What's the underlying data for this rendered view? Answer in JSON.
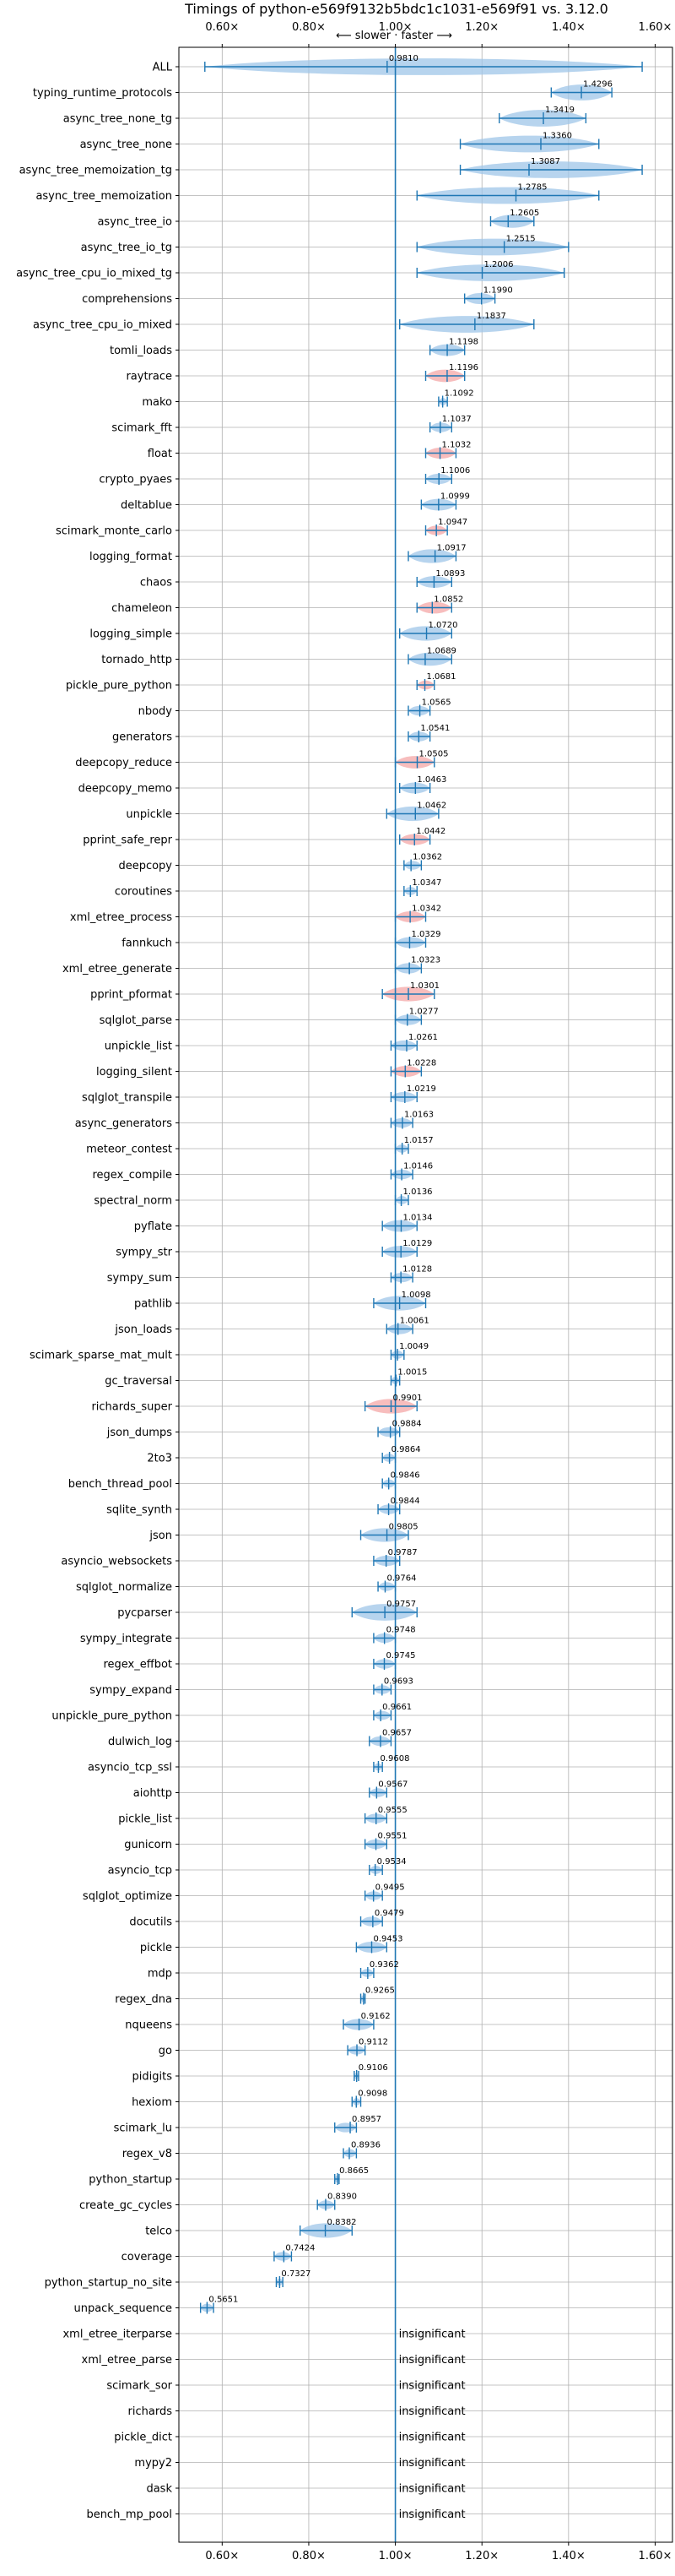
{
  "chart_data": {
    "type": "violin",
    "title": "Timings of python-e569f9132b5bdc1c1031-e569f91 vs. 3.12.0",
    "subtitle": "⟵ slower · faster ⟶",
    "xticks": [
      "0.60×",
      "0.80×",
      "1.00×",
      "1.20×",
      "1.40×",
      "1.60×"
    ],
    "xtick_values": [
      0.6,
      0.8,
      1.0,
      1.2,
      1.4,
      1.6
    ],
    "xlim": [
      0.5,
      1.64
    ],
    "grid": true,
    "reference_line": 1.0,
    "colors": {
      "violin": "#9fc5e8",
      "violin_highlight": "#f4a7a7",
      "line": "#1f77b4",
      "grid": "#b0b0b0"
    },
    "benchmarks": [
      {
        "name": "ALL",
        "value": 0.981,
        "label": "0.9810",
        "min": 0.56,
        "max": 1.57
      },
      {
        "name": "typing_runtime_protocols",
        "value": 1.4296,
        "label": "1.4296",
        "min": 1.36,
        "max": 1.5
      },
      {
        "name": "async_tree_none_tg",
        "value": 1.3419,
        "label": "1.3419",
        "min": 1.24,
        "max": 1.44
      },
      {
        "name": "async_tree_none",
        "value": 1.336,
        "label": "1.3360",
        "min": 1.15,
        "max": 1.47
      },
      {
        "name": "async_tree_memoization_tg",
        "value": 1.3087,
        "label": "1.3087",
        "min": 1.15,
        "max": 1.57
      },
      {
        "name": "async_tree_memoization",
        "value": 1.2785,
        "label": "1.2785",
        "min": 1.05,
        "max": 1.47
      },
      {
        "name": "async_tree_io",
        "value": 1.2605,
        "label": "1.2605",
        "min": 1.22,
        "max": 1.32
      },
      {
        "name": "async_tree_io_tg",
        "value": 1.2515,
        "label": "1.2515",
        "min": 1.05,
        "max": 1.4
      },
      {
        "name": "async_tree_cpu_io_mixed_tg",
        "value": 1.2006,
        "label": "1.2006",
        "min": 1.05,
        "max": 1.39
      },
      {
        "name": "comprehensions",
        "value": 1.199,
        "label": "1.1990",
        "min": 1.16,
        "max": 1.23
      },
      {
        "name": "async_tree_cpu_io_mixed",
        "value": 1.1837,
        "label": "1.1837",
        "min": 1.01,
        "max": 1.32
      },
      {
        "name": "tomli_loads",
        "value": 1.1198,
        "label": "1.1198",
        "min": 1.08,
        "max": 1.16
      },
      {
        "name": "raytrace",
        "value": 1.1196,
        "label": "1.1196",
        "min": 1.07,
        "max": 1.16
      },
      {
        "name": "mako",
        "value": 1.1092,
        "label": "1.1092",
        "min": 1.1,
        "max": 1.12
      },
      {
        "name": "scimark_fft",
        "value": 1.1037,
        "label": "1.1037",
        "min": 1.08,
        "max": 1.13
      },
      {
        "name": "float",
        "value": 1.1032,
        "label": "1.1032",
        "min": 1.07,
        "max": 1.14
      },
      {
        "name": "crypto_pyaes",
        "value": 1.1006,
        "label": "1.1006",
        "min": 1.07,
        "max": 1.13
      },
      {
        "name": "deltablue",
        "value": 1.0999,
        "label": "1.0999",
        "min": 1.06,
        "max": 1.14
      },
      {
        "name": "scimark_monte_carlo",
        "value": 1.0947,
        "label": "1.0947",
        "min": 1.07,
        "max": 1.12
      },
      {
        "name": "logging_format",
        "value": 1.0917,
        "label": "1.0917",
        "min": 1.03,
        "max": 1.14
      },
      {
        "name": "chaos",
        "value": 1.0893,
        "label": "1.0893",
        "min": 1.05,
        "max": 1.13
      },
      {
        "name": "chameleon",
        "value": 1.0852,
        "label": "1.0852",
        "min": 1.05,
        "max": 1.13
      },
      {
        "name": "logging_simple",
        "value": 1.072,
        "label": "1.0720",
        "min": 1.01,
        "max": 1.13
      },
      {
        "name": "tornado_http",
        "value": 1.0689,
        "label": "1.0689",
        "min": 1.03,
        "max": 1.13
      },
      {
        "name": "pickle_pure_python",
        "value": 1.0681,
        "label": "1.0681",
        "min": 1.05,
        "max": 1.09
      },
      {
        "name": "nbody",
        "value": 1.0565,
        "label": "1.0565",
        "min": 1.03,
        "max": 1.08
      },
      {
        "name": "generators",
        "value": 1.0541,
        "label": "1.0541",
        "min": 1.03,
        "max": 1.08
      },
      {
        "name": "deepcopy_reduce",
        "value": 1.0505,
        "label": "1.0505",
        "min": 1.0,
        "max": 1.09
      },
      {
        "name": "deepcopy_memo",
        "value": 1.0463,
        "label": "1.0463",
        "min": 1.01,
        "max": 1.08
      },
      {
        "name": "unpickle",
        "value": 1.0462,
        "label": "1.0462",
        "min": 0.98,
        "max": 1.1
      },
      {
        "name": "pprint_safe_repr",
        "value": 1.0442,
        "label": "1.0442",
        "min": 1.01,
        "max": 1.08
      },
      {
        "name": "deepcopy",
        "value": 1.0362,
        "label": "1.0362",
        "min": 1.02,
        "max": 1.06
      },
      {
        "name": "coroutines",
        "value": 1.0347,
        "label": "1.0347",
        "min": 1.02,
        "max": 1.05
      },
      {
        "name": "xml_etree_process",
        "value": 1.0342,
        "label": "1.0342",
        "min": 1.0,
        "max": 1.07
      },
      {
        "name": "fannkuch",
        "value": 1.0329,
        "label": "1.0329",
        "min": 1.0,
        "max": 1.07
      },
      {
        "name": "xml_etree_generate",
        "value": 1.0323,
        "label": "1.0323",
        "min": 1.0,
        "max": 1.06
      },
      {
        "name": "pprint_pformat",
        "value": 1.0301,
        "label": "1.0301",
        "min": 0.97,
        "max": 1.09
      },
      {
        "name": "sqlglot_parse",
        "value": 1.0277,
        "label": "1.0277",
        "min": 1.0,
        "max": 1.06
      },
      {
        "name": "unpickle_list",
        "value": 1.0261,
        "label": "1.0261",
        "min": 0.99,
        "max": 1.05
      },
      {
        "name": "logging_silent",
        "value": 1.0228,
        "label": "1.0228",
        "min": 0.99,
        "max": 1.06
      },
      {
        "name": "sqlglot_transpile",
        "value": 1.0219,
        "label": "1.0219",
        "min": 0.99,
        "max": 1.05
      },
      {
        "name": "async_generators",
        "value": 1.0163,
        "label": "1.0163",
        "min": 0.99,
        "max": 1.04
      },
      {
        "name": "meteor_contest",
        "value": 1.0157,
        "label": "1.0157",
        "min": 1.0,
        "max": 1.03
      },
      {
        "name": "regex_compile",
        "value": 1.0146,
        "label": "1.0146",
        "min": 0.99,
        "max": 1.04
      },
      {
        "name": "spectral_norm",
        "value": 1.0136,
        "label": "1.0136",
        "min": 1.0,
        "max": 1.03
      },
      {
        "name": "pyflate",
        "value": 1.0134,
        "label": "1.0134",
        "min": 0.97,
        "max": 1.05
      },
      {
        "name": "sympy_str",
        "value": 1.0129,
        "label": "1.0129",
        "min": 0.97,
        "max": 1.05
      },
      {
        "name": "sympy_sum",
        "value": 1.0128,
        "label": "1.0128",
        "min": 0.99,
        "max": 1.04
      },
      {
        "name": "pathlib",
        "value": 1.0098,
        "label": "1.0098",
        "min": 0.95,
        "max": 1.07
      },
      {
        "name": "json_loads",
        "value": 1.0061,
        "label": "1.0061",
        "min": 0.98,
        "max": 1.04
      },
      {
        "name": "scimark_sparse_mat_mult",
        "value": 1.0049,
        "label": "1.0049",
        "min": 0.99,
        "max": 1.02
      },
      {
        "name": "gc_traversal",
        "value": 1.0015,
        "label": "1.0015",
        "min": 0.99,
        "max": 1.01
      },
      {
        "name": "richards_super",
        "value": 0.9901,
        "label": "0.9901",
        "min": 0.93,
        "max": 1.05
      },
      {
        "name": "json_dumps",
        "value": 0.9884,
        "label": "0.9884",
        "min": 0.96,
        "max": 1.01
      },
      {
        "name": "2to3",
        "value": 0.9864,
        "label": "0.9864",
        "min": 0.97,
        "max": 1.0
      },
      {
        "name": "bench_thread_pool",
        "value": 0.9846,
        "label": "0.9846",
        "min": 0.97,
        "max": 1.0
      },
      {
        "name": "sqlite_synth",
        "value": 0.9844,
        "label": "0.9844",
        "min": 0.96,
        "max": 1.01
      },
      {
        "name": "json",
        "value": 0.9805,
        "label": "0.9805",
        "min": 0.92,
        "max": 1.03
      },
      {
        "name": "asyncio_websockets",
        "value": 0.9787,
        "label": "0.9787",
        "min": 0.95,
        "max": 1.01
      },
      {
        "name": "sqlglot_normalize",
        "value": 0.9764,
        "label": "0.9764",
        "min": 0.96,
        "max": 1.0
      },
      {
        "name": "pycparser",
        "value": 0.9757,
        "label": "0.9757",
        "min": 0.9,
        "max": 1.05
      },
      {
        "name": "sympy_integrate",
        "value": 0.9748,
        "label": "0.9748",
        "min": 0.95,
        "max": 1.0
      },
      {
        "name": "regex_effbot",
        "value": 0.9745,
        "label": "0.9745",
        "min": 0.95,
        "max": 1.0
      },
      {
        "name": "sympy_expand",
        "value": 0.9693,
        "label": "0.9693",
        "min": 0.95,
        "max": 0.99
      },
      {
        "name": "unpickle_pure_python",
        "value": 0.9661,
        "label": "0.9661",
        "min": 0.95,
        "max": 0.99
      },
      {
        "name": "dulwich_log",
        "value": 0.9657,
        "label": "0.9657",
        "min": 0.94,
        "max": 0.99
      },
      {
        "name": "asyncio_tcp_ssl",
        "value": 0.9608,
        "label": "0.9608",
        "min": 0.95,
        "max": 0.97
      },
      {
        "name": "aiohttp",
        "value": 0.9567,
        "label": "0.9567",
        "min": 0.94,
        "max": 0.98
      },
      {
        "name": "pickle_list",
        "value": 0.9555,
        "label": "0.9555",
        "min": 0.93,
        "max": 0.98
      },
      {
        "name": "gunicorn",
        "value": 0.9551,
        "label": "0.9551",
        "min": 0.93,
        "max": 0.98
      },
      {
        "name": "asyncio_tcp",
        "value": 0.9534,
        "label": "0.9534",
        "min": 0.94,
        "max": 0.97
      },
      {
        "name": "sqlglot_optimize",
        "value": 0.9495,
        "label": "0.9495",
        "min": 0.93,
        "max": 0.97
      },
      {
        "name": "docutils",
        "value": 0.9479,
        "label": "0.9479",
        "min": 0.92,
        "max": 0.97
      },
      {
        "name": "pickle",
        "value": 0.9453,
        "label": "0.9453",
        "min": 0.91,
        "max": 0.98
      },
      {
        "name": "mdp",
        "value": 0.9362,
        "label": "0.9362",
        "min": 0.92,
        "max": 0.95
      },
      {
        "name": "regex_dna",
        "value": 0.9265,
        "label": "0.9265",
        "min": 0.92,
        "max": 0.93
      },
      {
        "name": "nqueens",
        "value": 0.9162,
        "label": "0.9162",
        "min": 0.88,
        "max": 0.95
      },
      {
        "name": "go",
        "value": 0.9112,
        "label": "0.9112",
        "min": 0.89,
        "max": 0.93
      },
      {
        "name": "pidigits",
        "value": 0.9106,
        "label": "0.9106",
        "min": 0.905,
        "max": 0.915
      },
      {
        "name": "hexiom",
        "value": 0.9098,
        "label": "0.9098",
        "min": 0.9,
        "max": 0.92
      },
      {
        "name": "scimark_lu",
        "value": 0.8957,
        "label": "0.8957",
        "min": 0.86,
        "max": 0.91
      },
      {
        "name": "regex_v8",
        "value": 0.8936,
        "label": "0.8936",
        "min": 0.88,
        "max": 0.91
      },
      {
        "name": "python_startup",
        "value": 0.8665,
        "label": "0.8665",
        "min": 0.86,
        "max": 0.87
      },
      {
        "name": "create_gc_cycles",
        "value": 0.839,
        "label": "0.8390",
        "min": 0.82,
        "max": 0.86
      },
      {
        "name": "telco",
        "value": 0.8382,
        "label": "0.8382",
        "min": 0.78,
        "max": 0.9
      },
      {
        "name": "coverage",
        "value": 0.7424,
        "label": "0.7424",
        "min": 0.72,
        "max": 0.76
      },
      {
        "name": "python_startup_no_site",
        "value": 0.7327,
        "label": "0.7327",
        "min": 0.725,
        "max": 0.74
      },
      {
        "name": "unpack_sequence",
        "value": 0.5651,
        "label": "0.5651",
        "min": 0.55,
        "max": 0.58
      },
      {
        "name": "xml_etree_iterparse",
        "value": null,
        "label": "insignificant"
      },
      {
        "name": "xml_etree_parse",
        "value": null,
        "label": "insignificant"
      },
      {
        "name": "scimark_sor",
        "value": null,
        "label": "insignificant"
      },
      {
        "name": "richards",
        "value": null,
        "label": "insignificant"
      },
      {
        "name": "pickle_dict",
        "value": null,
        "label": "insignificant"
      },
      {
        "name": "mypy2",
        "value": null,
        "label": "insignificant"
      },
      {
        "name": "dask",
        "value": null,
        "label": "insignificant"
      },
      {
        "name": "bench_mp_pool",
        "value": null,
        "label": "insignificant"
      }
    ]
  }
}
